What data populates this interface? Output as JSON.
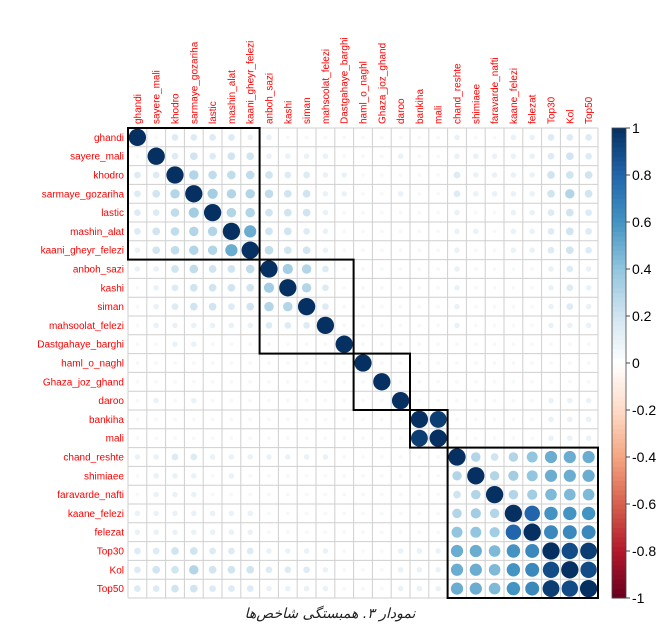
{
  "chart_data": {
    "type": "corrplot",
    "title": "نمودار ۳. همبستگی شاخص‌ها",
    "labels": [
      "ghandi",
      "sayere_mali",
      "khodro",
      "sarmaye_gozariha",
      "lastic",
      "mashin_alat",
      "kaani_gheyr_felezi",
      "anboh_sazi",
      "kashi",
      "siman",
      "mahsoolat_felezi",
      "Dastgahaye_barghi",
      "haml_o_naghl",
      "Ghaza_joz_ghand",
      "daroo",
      "bankiha",
      "mali",
      "chand_reshte",
      "shimiaee",
      "faravarde_nafti",
      "kaane_felezi",
      "felezat",
      "Top30",
      "Kol",
      "Top50"
    ],
    "matrix": [
      [
        1,
        0.05,
        0.15,
        0.15,
        0.15,
        0.15,
        0.1,
        0.1,
        0.05,
        0.05,
        0.05,
        0.05,
        0.05,
        0.05,
        0.05,
        0.05,
        0.05,
        0.1,
        0.05,
        0.05,
        0.1,
        0.1,
        0.15,
        0.15,
        0.15
      ],
      [
        0.05,
        1,
        0.15,
        0.2,
        0.15,
        0.2,
        0.2,
        0.1,
        0.1,
        0.1,
        0.1,
        0.05,
        0.05,
        0.05,
        0.1,
        0.05,
        0.05,
        0.1,
        0.1,
        0.1,
        0.1,
        0.1,
        0.15,
        0.2,
        0.15
      ],
      [
        0.15,
        0.15,
        1,
        0.3,
        0.25,
        0.25,
        0.25,
        0.2,
        0.15,
        0.15,
        0.1,
        0.1,
        0.05,
        0.05,
        0.05,
        0.05,
        0.05,
        0.15,
        0.1,
        0.1,
        0.1,
        0.1,
        0.2,
        0.2,
        0.2
      ],
      [
        0.15,
        0.2,
        0.3,
        1,
        0.35,
        0.3,
        0.3,
        0.25,
        0.2,
        0.2,
        0.1,
        0.1,
        0.05,
        0.05,
        0.1,
        0.05,
        0.05,
        0.15,
        0.1,
        0.1,
        0.1,
        0.1,
        0.2,
        0.3,
        0.2
      ],
      [
        0.15,
        0.15,
        0.25,
        0.35,
        1,
        0.3,
        0.3,
        0.2,
        0.2,
        0.2,
        0.1,
        0.05,
        0.05,
        0.05,
        0.05,
        0.05,
        0.05,
        0.1,
        0.05,
        0.05,
        0.1,
        0.1,
        0.15,
        0.2,
        0.15
      ],
      [
        0.15,
        0.2,
        0.25,
        0.3,
        0.3,
        1,
        0.5,
        0.2,
        0.2,
        0.15,
        0.1,
        0.05,
        0.05,
        0.05,
        0.05,
        0.05,
        0.05,
        0.1,
        0.1,
        0.05,
        0.1,
        0.1,
        0.15,
        0.2,
        0.15
      ],
      [
        0.1,
        0.2,
        0.25,
        0.3,
        0.3,
        0.5,
        1,
        0.25,
        0.2,
        0.2,
        0.1,
        0.05,
        0.05,
        0.05,
        0.05,
        0.05,
        0.05,
        0.1,
        0.05,
        0.05,
        0.1,
        0.1,
        0.15,
        0.2,
        0.15
      ],
      [
        0.1,
        0.1,
        0.2,
        0.25,
        0.2,
        0.2,
        0.25,
        1,
        0.35,
        0.3,
        0.15,
        0.05,
        0.05,
        0.05,
        0.05,
        0.05,
        0.05,
        0.1,
        0.05,
        0.05,
        0.05,
        0.05,
        0.1,
        0.15,
        0.1
      ],
      [
        0.05,
        0.1,
        0.15,
        0.2,
        0.2,
        0.2,
        0.2,
        0.35,
        1,
        0.3,
        0.15,
        0.05,
        0.05,
        0.05,
        0.05,
        0.05,
        0.05,
        0.1,
        0.05,
        0.05,
        0.05,
        0.05,
        0.1,
        0.15,
        0.1
      ],
      [
        0.05,
        0.1,
        0.15,
        0.2,
        0.2,
        0.15,
        0.2,
        0.3,
        0.3,
        1,
        0.15,
        0.05,
        0.05,
        0.05,
        0.05,
        0.05,
        0.05,
        0.1,
        0.05,
        0.05,
        0.05,
        0.05,
        0.1,
        0.15,
        0.1
      ],
      [
        0.05,
        0.1,
        0.1,
        0.1,
        0.1,
        0.1,
        0.1,
        0.15,
        0.15,
        0.15,
        1,
        0.05,
        0.05,
        0.05,
        0.05,
        0.05,
        0.05,
        0.1,
        0.05,
        0.05,
        0.05,
        0.05,
        0.1,
        0.1,
        0.1
      ],
      [
        0.05,
        0.05,
        0.1,
        0.1,
        0.05,
        0.05,
        0.05,
        0.05,
        0.05,
        0.05,
        0.05,
        1,
        0.05,
        0.05,
        0.05,
        0.05,
        0.05,
        0.05,
        0.05,
        0.05,
        0.05,
        0.05,
        0.05,
        0.05,
        0.05
      ],
      [
        0.05,
        0.05,
        0.05,
        0.05,
        0.05,
        0.05,
        0.05,
        0.05,
        0.05,
        0.05,
        0.05,
        0.05,
        1,
        0.05,
        0.05,
        0.05,
        0.05,
        0.05,
        0.05,
        0.05,
        0.05,
        0.05,
        0.05,
        0.05,
        0.05
      ],
      [
        0.05,
        0.05,
        0.05,
        0.05,
        0.05,
        0.05,
        0.05,
        0.05,
        0.05,
        0.05,
        0.05,
        0.05,
        0.05,
        1,
        0.05,
        0.05,
        0.05,
        0.05,
        0.05,
        0.05,
        0.05,
        0.05,
        0.05,
        0.05,
        0.05
      ],
      [
        0.05,
        0.1,
        0.05,
        0.1,
        0.05,
        0.05,
        0.05,
        0.05,
        0.05,
        0.05,
        0.05,
        0.05,
        0.05,
        0.05,
        1,
        0.05,
        0.05,
        0.05,
        0.05,
        0.05,
        0.05,
        0.05,
        0.1,
        0.1,
        0.1
      ],
      [
        0.05,
        0.05,
        0.05,
        0.05,
        0.05,
        0.05,
        0.05,
        0.05,
        0.05,
        0.05,
        0.05,
        0.05,
        0.05,
        0.05,
        0.05,
        1,
        0.95,
        0.05,
        0.05,
        0.05,
        0.05,
        0.05,
        0.1,
        0.1,
        0.1
      ],
      [
        0.05,
        0.05,
        0.05,
        0.05,
        0.05,
        0.05,
        0.05,
        0.05,
        0.05,
        0.05,
        0.05,
        0.05,
        0.05,
        0.05,
        0.05,
        0.95,
        1,
        0.05,
        0.05,
        0.05,
        0.05,
        0.05,
        0.1,
        0.1,
        0.1
      ],
      [
        0.1,
        0.1,
        0.15,
        0.15,
        0.1,
        0.1,
        0.1,
        0.1,
        0.1,
        0.1,
        0.1,
        0.05,
        0.05,
        0.05,
        0.05,
        0.05,
        0.05,
        1,
        0.3,
        0.2,
        0.3,
        0.4,
        0.5,
        0.5,
        0.5
      ],
      [
        0.05,
        0.1,
        0.1,
        0.1,
        0.05,
        0.1,
        0.05,
        0.05,
        0.05,
        0.05,
        0.05,
        0.05,
        0.05,
        0.05,
        0.05,
        0.05,
        0.05,
        0.3,
        1,
        0.3,
        0.35,
        0.4,
        0.5,
        0.5,
        0.5
      ],
      [
        0.05,
        0.1,
        0.1,
        0.1,
        0.05,
        0.05,
        0.05,
        0.05,
        0.05,
        0.05,
        0.05,
        0.05,
        0.05,
        0.05,
        0.05,
        0.05,
        0.05,
        0.2,
        0.3,
        1,
        0.3,
        0.35,
        0.45,
        0.45,
        0.45
      ],
      [
        0.1,
        0.1,
        0.1,
        0.1,
        0.1,
        0.1,
        0.1,
        0.05,
        0.05,
        0.05,
        0.05,
        0.05,
        0.05,
        0.05,
        0.05,
        0.05,
        0.05,
        0.3,
        0.35,
        0.3,
        1,
        0.8,
        0.6,
        0.6,
        0.6
      ],
      [
        0.1,
        0.1,
        0.1,
        0.1,
        0.1,
        0.1,
        0.1,
        0.05,
        0.05,
        0.05,
        0.05,
        0.05,
        0.05,
        0.05,
        0.05,
        0.05,
        0.05,
        0.4,
        0.4,
        0.35,
        0.8,
        1,
        0.65,
        0.65,
        0.65
      ],
      [
        0.15,
        0.15,
        0.2,
        0.2,
        0.15,
        0.15,
        0.15,
        0.1,
        0.1,
        0.1,
        0.1,
        0.05,
        0.05,
        0.05,
        0.1,
        0.1,
        0.1,
        0.5,
        0.5,
        0.45,
        0.6,
        0.65,
        1,
        0.9,
        0.95
      ],
      [
        0.15,
        0.2,
        0.2,
        0.3,
        0.2,
        0.2,
        0.2,
        0.15,
        0.15,
        0.15,
        0.1,
        0.05,
        0.05,
        0.05,
        0.1,
        0.1,
        0.1,
        0.5,
        0.5,
        0.45,
        0.6,
        0.65,
        0.9,
        1,
        0.9
      ],
      [
        0.15,
        0.15,
        0.2,
        0.2,
        0.15,
        0.15,
        0.15,
        0.1,
        0.1,
        0.1,
        0.1,
        0.05,
        0.05,
        0.05,
        0.1,
        0.1,
        0.1,
        0.5,
        0.5,
        0.45,
        0.6,
        0.65,
        0.95,
        0.9,
        1
      ]
    ],
    "clusters": [
      [
        0,
        6
      ],
      [
        7,
        11
      ],
      [
        12,
        14
      ],
      [
        15,
        16
      ],
      [
        17,
        24
      ]
    ],
    "clim": [
      -1,
      1
    ],
    "colorbar_ticks": [
      1,
      0.8,
      0.6,
      0.4,
      0.2,
      0,
      -0.2,
      -0.4,
      -0.6,
      -0.8,
      -1
    ],
    "colors": [
      "#67001F",
      "#B2182B",
      "#D6604D",
      "#F4A582",
      "#FDDBC7",
      "#FFFFFF",
      "#D1E5F0",
      "#92C5DE",
      "#4393C3",
      "#2166AC",
      "#053061"
    ],
    "label_color": "#ff0000"
  }
}
